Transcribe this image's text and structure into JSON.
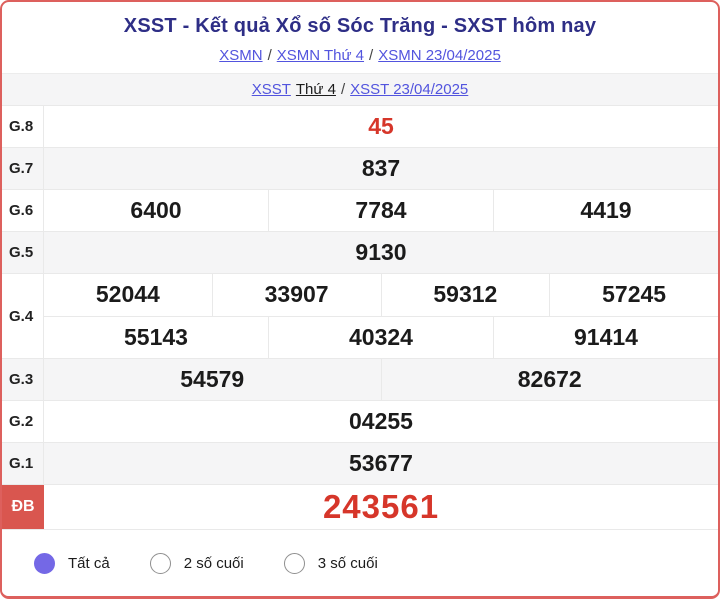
{
  "header": {
    "title": "XSST - Kết quả Xổ số Sóc Trăng - SXST hôm nay",
    "breadcrumb_sep": "/",
    "breadcrumb1": [
      {
        "label": "XSMN"
      },
      {
        "label": "XSMN Thứ 4"
      },
      {
        "label": "XSMN 23/04/2025"
      }
    ],
    "breadcrumb2": {
      "link1": "XSST",
      "current": "Thứ 4",
      "sep": "/",
      "link2": "XSST 23/04/2025"
    }
  },
  "results": {
    "rows": [
      {
        "label": "G.8",
        "highlight": true,
        "special": false,
        "groups": [
          [
            "45"
          ]
        ]
      },
      {
        "label": "G.7",
        "highlight": false,
        "special": false,
        "groups": [
          [
            "837"
          ]
        ]
      },
      {
        "label": "G.6",
        "highlight": false,
        "special": false,
        "groups": [
          [
            "6400",
            "7784",
            "4419"
          ]
        ]
      },
      {
        "label": "G.5",
        "highlight": false,
        "special": false,
        "groups": [
          [
            "9130"
          ]
        ]
      },
      {
        "label": "G.4",
        "highlight": false,
        "special": false,
        "groups": [
          [
            "52044",
            "33907",
            "59312",
            "57245"
          ],
          [
            "55143",
            "40324",
            "91414"
          ]
        ]
      },
      {
        "label": "G.3",
        "highlight": false,
        "special": false,
        "groups": [
          [
            "54579",
            "82672"
          ]
        ]
      },
      {
        "label": "G.2",
        "highlight": false,
        "special": false,
        "groups": [
          [
            "04255"
          ]
        ]
      },
      {
        "label": "G.1",
        "highlight": false,
        "special": false,
        "groups": [
          [
            "53677"
          ]
        ]
      },
      {
        "label": "ĐB",
        "highlight": false,
        "special": true,
        "groups": [
          [
            "243561"
          ]
        ]
      }
    ]
  },
  "filters": {
    "options": [
      {
        "label": "Tất cả",
        "selected": true
      },
      {
        "label": "2 số cuối",
        "selected": false
      },
      {
        "label": "3 số cuối",
        "selected": false
      }
    ]
  },
  "colors": {
    "card_border": "#dd605d",
    "title": "#2e2e86",
    "link": "#5254de",
    "row_alt_bg": "#f5f5f6",
    "divider": "#e9e9e9",
    "highlight_number": "#d6362a",
    "special_label_bg": "#d9564f",
    "radio_selected": "#7468e6"
  }
}
